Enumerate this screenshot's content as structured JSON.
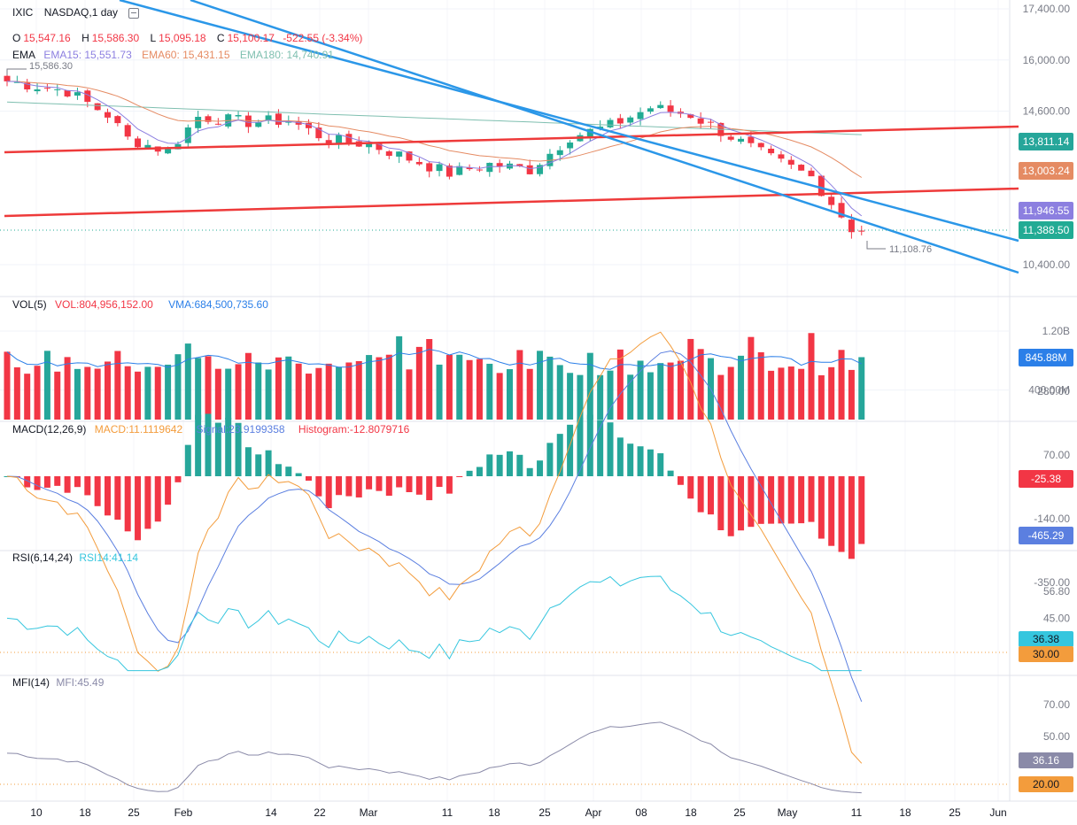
{
  "header": {
    "symbol": "IXIC",
    "exchange_interval": "NASDAQ,1 day",
    "ohlc": {
      "o_label": "O",
      "o": "15,547.16",
      "h_label": "H",
      "h": "15,586.30",
      "l_label": "L",
      "l": "15,095.18",
      "c_label": "C",
      "c": "15,100.17",
      "change": "-522.55 (-3.34%)"
    },
    "ema": {
      "label": "EMA",
      "ema15": "EMA15: 15,551.73",
      "ema60": "EMA60: 15,431.15",
      "ema180": "EMA180: 14,740.91"
    }
  },
  "volume_legend": {
    "label": "VOL(5)",
    "vol": "VOL:804,956,152.00",
    "vma": "VMA:684,500,735.60"
  },
  "macd_legend": {
    "label": "MACD(12,26,9)",
    "macd": "MACD:11.1119642",
    "signal": "Signal:23.9199358",
    "histogram": "Histogram:-12.8079716"
  },
  "rsi_legend": {
    "label": "RSI(6,14,24)",
    "rsi": "RSI14:41.14"
  },
  "mfi_legend": {
    "label": "MFI(14)",
    "mfi": "MFI:45.49"
  },
  "colors": {
    "up": "#26a69a",
    "up_candle": "#22ab94",
    "down": "#f23645",
    "trend_red": "#ee3a3a",
    "channel_blue": "#2b97e8",
    "ema15": "#8c7fe0",
    "ema60": "#e58b63",
    "ema180": "#7fbfb0",
    "macd": "#f39c3c",
    "signal": "#5b7fe0",
    "rsi": "#35c6de",
    "mfi": "#8a8aa8"
  },
  "annotations": {
    "high_marker": "15,586.30",
    "low_marker": "11,108.76"
  },
  "chart_data": [
    {
      "type": "candlestick",
      "name": "price",
      "y_ticks": [
        "17,400.00",
        "16,000.00",
        "14,600.00",
        "10,400.00"
      ],
      "ylim": [
        10000,
        17500
      ],
      "x_ticks": [
        "10",
        "18",
        "25",
        "Feb",
        "14",
        "22",
        "Mar",
        "11",
        "18",
        "25",
        "Apr",
        "08",
        "18",
        "25",
        "May",
        "11",
        "18",
        "25",
        "Jun"
      ],
      "badges": [
        {
          "text": "13,811.14",
          "color": "#26a69a"
        },
        {
          "text": "13,003.24",
          "color": "#e58b63"
        },
        {
          "text": "11,946.55",
          "color": "#8c7fe0"
        },
        {
          "text": "11,388.50",
          "color": "#22ab94"
        }
      ],
      "ema15_end": 11946.55,
      "ema60_end": 13003.24,
      "ema180_end": 13811.14,
      "last_close": 11388.5
    },
    {
      "type": "bar",
      "name": "volume",
      "y_ticks": [
        "1.20B",
        "400.00M"
      ],
      "badge": {
        "text": "845.88M",
        "color": "#2b7fe8"
      }
    },
    {
      "type": "line+histogram",
      "name": "macd",
      "y_ticks": [
        "280.00",
        "70.00",
        "-140.00",
        "-350.00"
      ],
      "badges": [
        {
          "text": "-25.38",
          "color": "#f23645"
        },
        {
          "text": "-465.29",
          "color": "#5b7fe0"
        }
      ]
    },
    {
      "type": "line",
      "name": "rsi",
      "y_ticks": [
        "56.80",
        "45.00",
        "30.00"
      ],
      "badges": [
        {
          "text": "36.38",
          "color": "#35c6de"
        },
        {
          "text": "30.00",
          "color": "#f39c3c"
        }
      ]
    },
    {
      "type": "line",
      "name": "mfi",
      "y_ticks": [
        "70.00",
        "50.00",
        "20.00"
      ],
      "badges": [
        {
          "text": "36.16",
          "color": "#8a8aa8"
        },
        {
          "text": "20.00",
          "color": "#f39c3c"
        }
      ]
    }
  ]
}
